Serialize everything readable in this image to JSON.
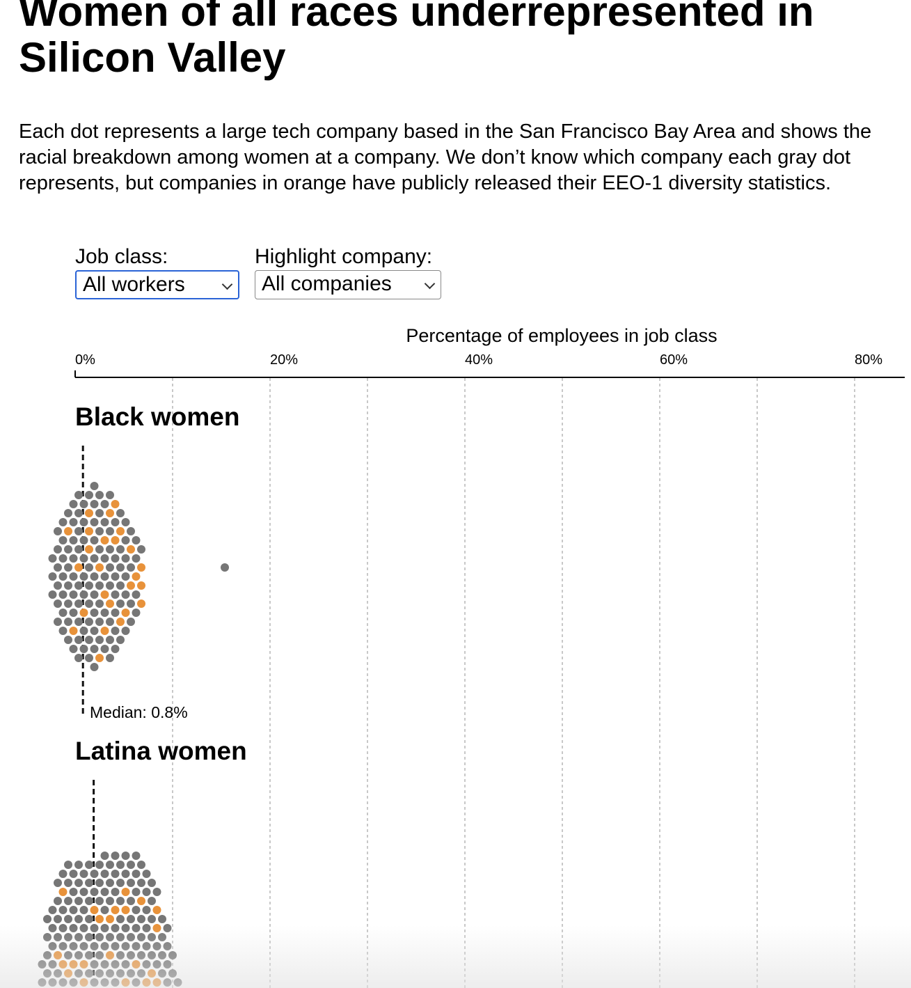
{
  "title": "Women of all races underrepresented in Silicon Valley",
  "description": "Each dot represents a large tech company based in the San Francisco Bay Area and shows the racial breakdown among women at a company. We don’t know which company each gray dot represents, but companies in orange have publicly released their EEO-1 diversity statistics.",
  "controls": {
    "job_class": {
      "label": "Job class:",
      "value": "All workers"
    },
    "highlight": {
      "label": "Highlight company:",
      "value": "All companies"
    }
  },
  "colors": {
    "gray": "#767676",
    "orange": "#e8923a",
    "grid": "#c8c8c8",
    "focus": "#2a63d6"
  },
  "chart_data": {
    "type": "scatter",
    "subtype": "beeswarm",
    "xlabel": "Percentage of employees in job class",
    "xlim": [
      0,
      85
    ],
    "ticks": [
      {
        "value": 0,
        "label": "0%"
      },
      {
        "value": 20,
        "label": "20%"
      },
      {
        "value": 40,
        "label": "40%"
      },
      {
        "value": 60,
        "label": "60%"
      },
      {
        "value": 80,
        "label": "80%"
      }
    ],
    "grid": "dashed vertical every 10%",
    "groups": [
      {
        "name": "Black women",
        "median": 0.8,
        "median_label": "Median: 0.8%",
        "gray_counts": [
          [
            0,
            14
          ],
          [
            0.2,
            6
          ],
          [
            0.4,
            8
          ],
          [
            0.6,
            9
          ],
          [
            0.8,
            10
          ],
          [
            1.0,
            9
          ],
          [
            1.2,
            8
          ],
          [
            1.4,
            7
          ],
          [
            1.6,
            6
          ],
          [
            1.8,
            6
          ],
          [
            2.0,
            5
          ],
          [
            2.3,
            5
          ],
          [
            2.6,
            4
          ],
          [
            2.9,
            4
          ],
          [
            3.2,
            3
          ],
          [
            3.5,
            3
          ],
          [
            3.9,
            3
          ],
          [
            4.3,
            2
          ],
          [
            4.8,
            2
          ],
          [
            5.3,
            1
          ],
          [
            6.0,
            1
          ],
          [
            15.5,
            1
          ]
        ],
        "orange_values": [
          0.5,
          0.6,
          0.8,
          0.9,
          1.0,
          1.1,
          1.2,
          1.3,
          1.4,
          1.5,
          1.7,
          1.9,
          2.0,
          2.2,
          2.4,
          2.6,
          2.9,
          3.1,
          3.4,
          3.7,
          4.0,
          4.5,
          5.0,
          5.5,
          6.0
        ]
      },
      {
        "name": "Latina women",
        "median": 1.9,
        "gray_counts": [
          [
            0,
            10
          ],
          [
            0.4,
            7
          ],
          [
            0.8,
            9
          ],
          [
            1.2,
            11
          ],
          [
            1.6,
            12
          ],
          [
            1.9,
            13
          ],
          [
            2.2,
            12
          ],
          [
            2.6,
            11
          ],
          [
            3.0,
            10
          ],
          [
            3.4,
            9
          ],
          [
            3.8,
            8
          ],
          [
            4.3,
            7
          ],
          [
            4.8,
            6
          ],
          [
            5.3,
            5
          ],
          [
            5.8,
            4
          ],
          [
            6.4,
            3
          ],
          [
            7.0,
            2
          ],
          [
            7.8,
            1
          ],
          [
            8.9,
            1
          ]
        ],
        "orange_values": [
          0.3,
          0.7,
          1.0,
          1.3,
          1.6,
          1.8,
          2.0,
          2.1,
          2.3,
          2.5,
          2.7,
          3.0,
          3.2,
          3.5,
          3.8,
          4.1,
          4.5,
          4.9,
          5.3,
          5.8,
          2.4,
          1.5
        ]
      }
    ]
  }
}
